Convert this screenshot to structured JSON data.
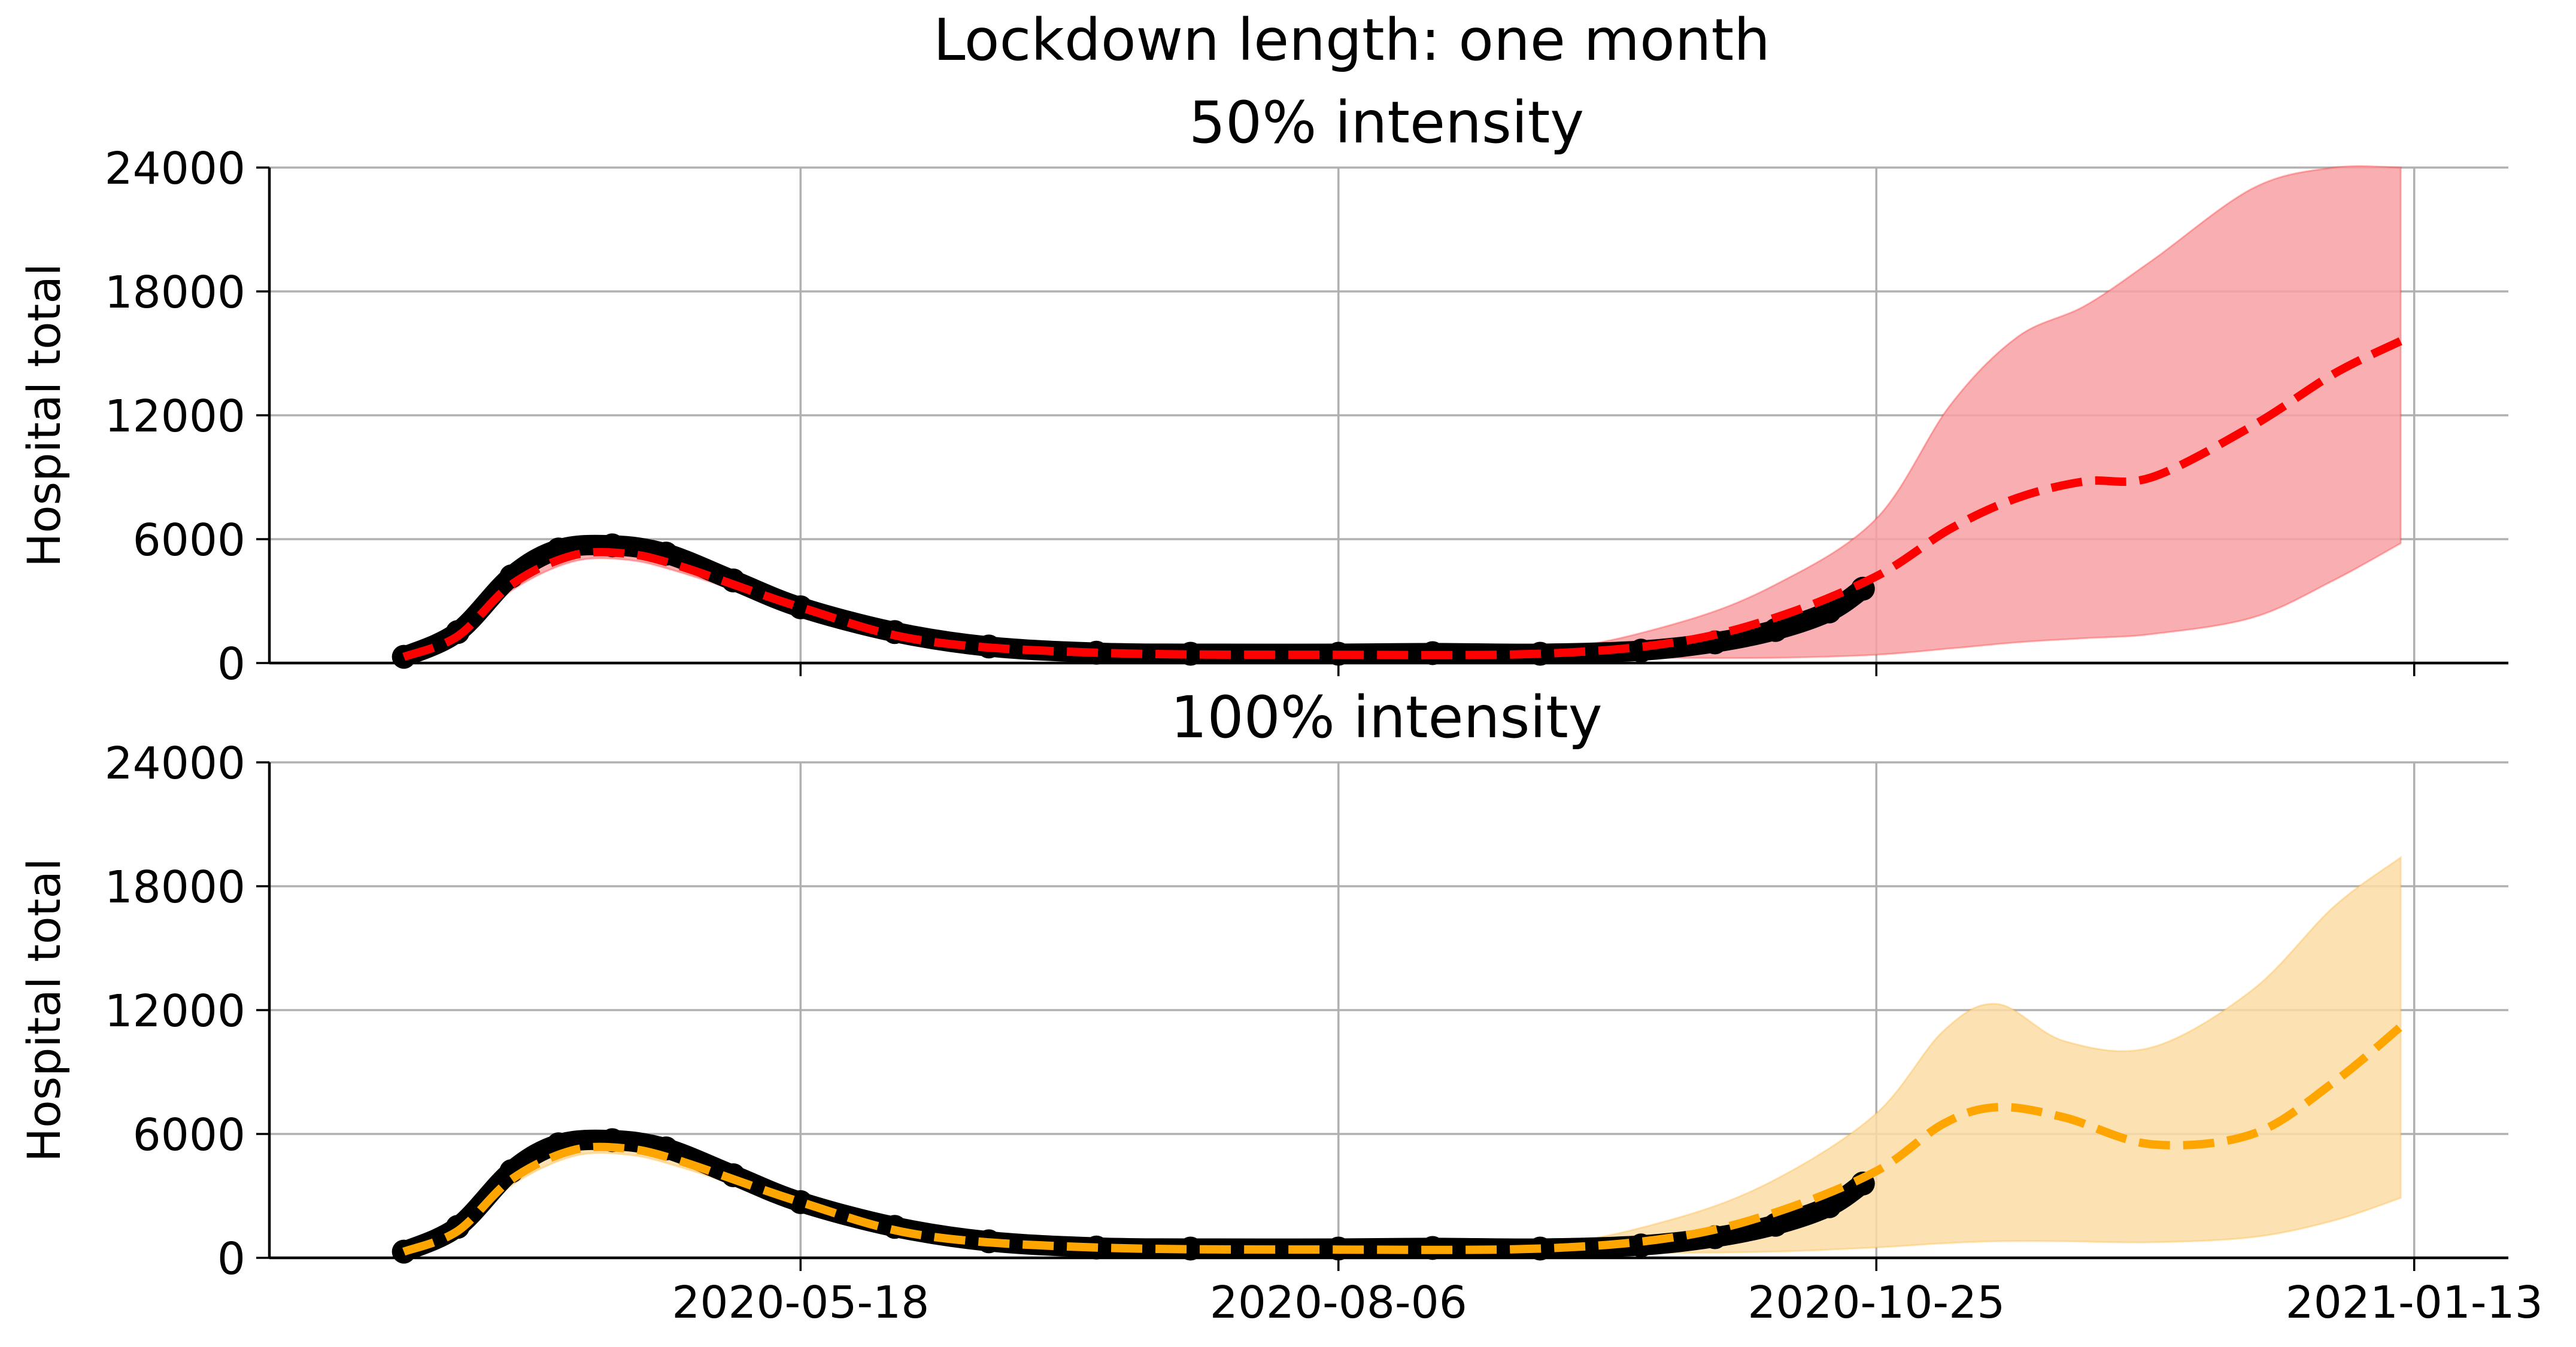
{
  "figure": {
    "suptitle": "Lockdown length: one month"
  },
  "chart_data": [
    {
      "type": "line",
      "title": "50% intensity",
      "ylabel": "Hospital total",
      "xlabel": "",
      "ylim": [
        0,
        24000
      ],
      "yticks": [
        0,
        6000,
        12000,
        18000,
        24000
      ],
      "ytick_labels": [
        "0",
        "6000",
        "12000",
        "18000",
        "24000"
      ],
      "xticks": [
        "2020-05-18",
        "2020-08-06",
        "2020-10-25",
        "2021-01-13"
      ],
      "xtick_labels": [],
      "grid": true,
      "color": "#ff0000",
      "band_color": "#f8a0a3",
      "observed": {
        "x": [
          "2020-03-20",
          "2020-03-28",
          "2020-04-05",
          "2020-04-12",
          "2020-04-20",
          "2020-04-28",
          "2020-05-08",
          "2020-05-18",
          "2020-06-01",
          "2020-06-15",
          "2020-07-01",
          "2020-07-15",
          "2020-08-06",
          "2020-08-20",
          "2020-09-05",
          "2020-09-20",
          "2020-10-01",
          "2020-10-10",
          "2020-10-18",
          "2020-10-23"
        ],
        "y": [
          300,
          1500,
          4200,
          5500,
          5700,
          5300,
          4000,
          2700,
          1500,
          800,
          500,
          450,
          450,
          480,
          450,
          600,
          1000,
          1600,
          2500,
          3600
        ]
      },
      "series": [
        {
          "name": "",
          "style": "dashed",
          "x": [
            "2020-03-20",
            "2020-03-28",
            "2020-04-05",
            "2020-04-14",
            "2020-04-22",
            "2020-04-30",
            "2020-05-18",
            "2020-06-05",
            "2020-07-01",
            "2020-08-06",
            "2020-09-05",
            "2020-09-25",
            "2020-10-10",
            "2020-10-25",
            "2020-11-05",
            "2020-11-15",
            "2020-11-25",
            "2020-12-05",
            "2020-12-20",
            "2021-01-01",
            "2021-01-11"
          ],
          "y": [
            300,
            1300,
            3800,
            5200,
            5300,
            4700,
            2700,
            1100,
            500,
            400,
            450,
            1000,
            2200,
            4200,
            6500,
            8000,
            8800,
            9000,
            11500,
            14000,
            15600
          ],
          "lower": [
            300,
            1200,
            3500,
            4900,
            5000,
            4400,
            2500,
            1000,
            450,
            380,
            350,
            250,
            250,
            400,
            700,
            1000,
            1200,
            1400,
            2200,
            4000,
            5800
          ],
          "upper": [
            350,
            1400,
            4100,
            5500,
            5600,
            5000,
            2900,
            1200,
            550,
            450,
            600,
            1900,
            3800,
            7000,
            12500,
            15800,
            17300,
            19500,
            23000,
            24000,
            24000
          ]
        }
      ]
    },
    {
      "type": "line",
      "title": "100% intensity",
      "ylabel": "Hospital total",
      "xlabel": "",
      "ylim": [
        0,
        24000
      ],
      "yticks": [
        0,
        6000,
        12000,
        18000,
        24000
      ],
      "ytick_labels": [
        "0",
        "6000",
        "12000",
        "18000",
        "24000"
      ],
      "xticks": [
        "2020-05-18",
        "2020-08-06",
        "2020-10-25",
        "2021-01-13"
      ],
      "xtick_labels": [
        "2020-05-18",
        "2020-08-06",
        "2020-10-25",
        "2021-01-13"
      ],
      "grid": true,
      "color": "#ffa500",
      "band_color": "#fcdca6",
      "observed": {
        "x": [
          "2020-03-20",
          "2020-03-28",
          "2020-04-05",
          "2020-04-12",
          "2020-04-20",
          "2020-04-28",
          "2020-05-08",
          "2020-05-18",
          "2020-06-01",
          "2020-06-15",
          "2020-07-01",
          "2020-07-15",
          "2020-08-06",
          "2020-08-20",
          "2020-09-05",
          "2020-09-20",
          "2020-10-01",
          "2020-10-10",
          "2020-10-18",
          "2020-10-23"
        ],
        "y": [
          300,
          1500,
          4200,
          5500,
          5700,
          5300,
          4000,
          2700,
          1500,
          800,
          500,
          450,
          450,
          480,
          450,
          600,
          1000,
          1600,
          2500,
          3600
        ]
      },
      "series": [
        {
          "name": "",
          "style": "dashed",
          "x": [
            "2020-03-20",
            "2020-03-28",
            "2020-04-05",
            "2020-04-14",
            "2020-04-22",
            "2020-04-30",
            "2020-05-18",
            "2020-06-05",
            "2020-07-01",
            "2020-08-06",
            "2020-09-05",
            "2020-09-25",
            "2020-10-10",
            "2020-10-25",
            "2020-11-04",
            "2020-11-12",
            "2020-11-22",
            "2020-12-05",
            "2020-12-20",
            "2021-01-01",
            "2021-01-11"
          ],
          "y": [
            300,
            1300,
            3800,
            5200,
            5300,
            4700,
            2700,
            1100,
            500,
            400,
            450,
            1000,
            2200,
            4200,
            6500,
            7300,
            6800,
            5500,
            6000,
            8500,
            11200
          ],
          "lower": [
            300,
            1200,
            3500,
            4900,
            5000,
            4400,
            2500,
            1000,
            450,
            380,
            350,
            250,
            300,
            500,
            700,
            800,
            800,
            750,
            1000,
            1800,
            2900
          ],
          "upper": [
            350,
            1400,
            4100,
            5500,
            5600,
            5000,
            2900,
            1200,
            550,
            450,
            600,
            1900,
            3800,
            7000,
            11000,
            12300,
            10500,
            10200,
            13000,
            17000,
            19400
          ]
        }
      ]
    }
  ]
}
